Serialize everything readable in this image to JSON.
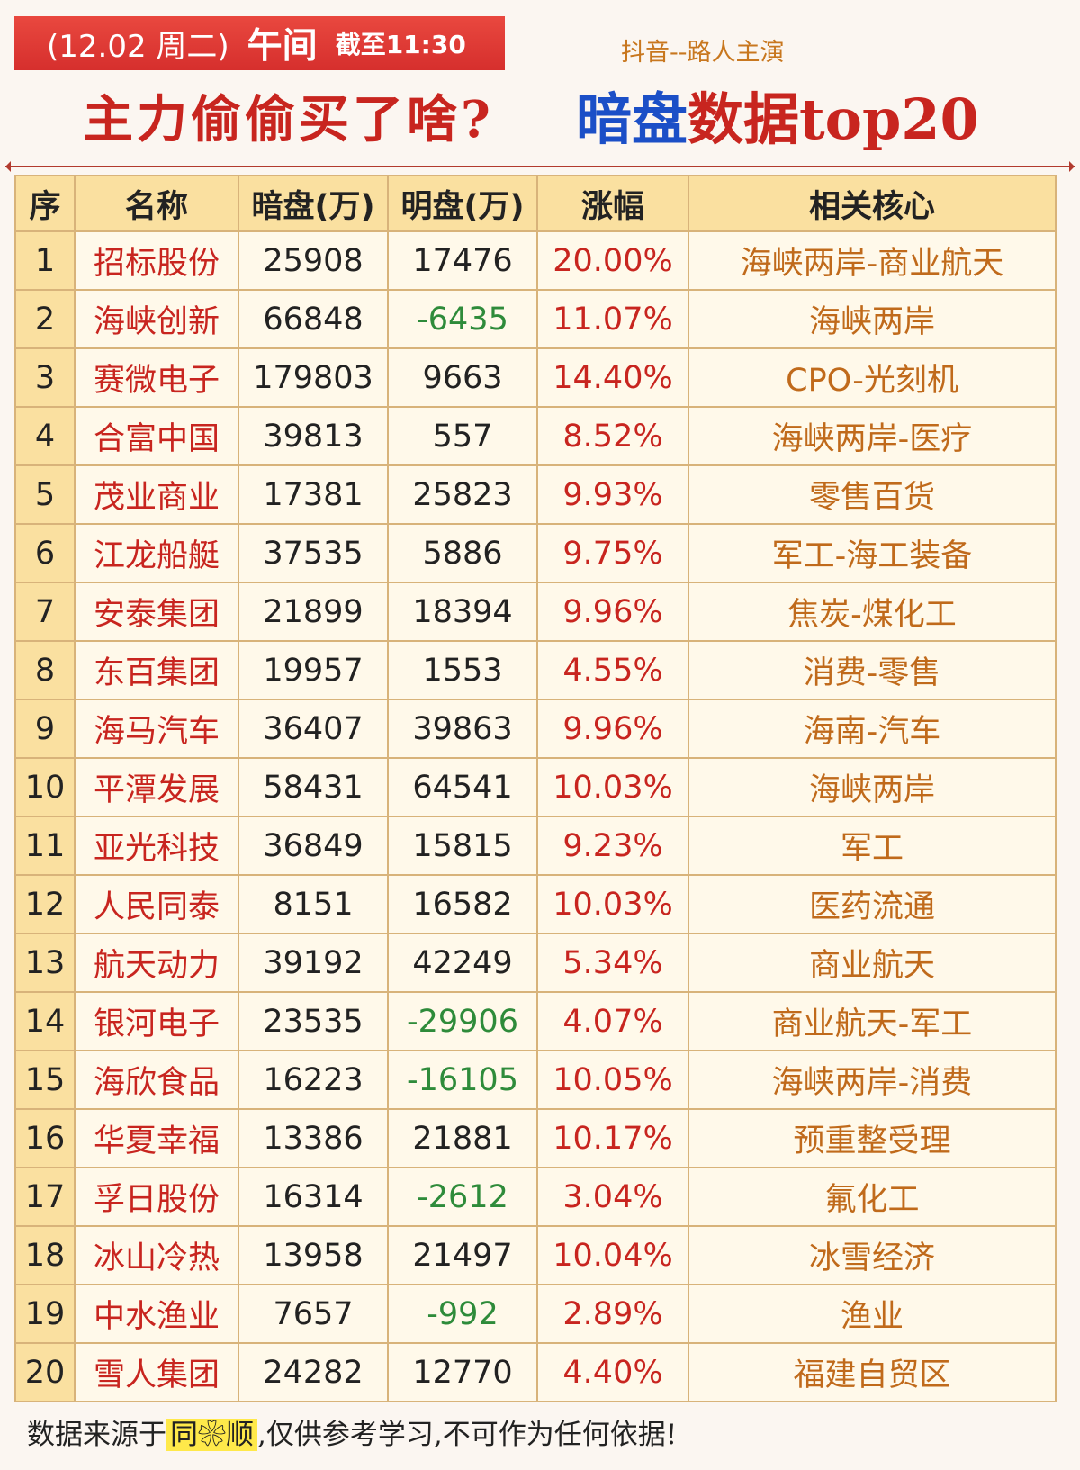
{
  "header": {
    "date": "(12.02 周二)",
    "session": "午间",
    "cutoff": "截至11:30",
    "source_tag": "抖音--路人主演",
    "title_left": "主力偷偷买了啥?",
    "title_right_part1": "暗盘",
    "title_right_part2": "数据top20"
  },
  "columns": [
    "序",
    "名称",
    "暗盘(万)",
    "明盘(万)",
    "涨幅",
    "相关核心"
  ],
  "rows": [
    {
      "seq": "1",
      "name": "招标股份",
      "dark": "25908",
      "lit": "17476",
      "change": "20.00%",
      "core": "海峡两岸-商业航天"
    },
    {
      "seq": "2",
      "name": "海峡创新",
      "dark": "66848",
      "lit": "-6435",
      "change": "11.07%",
      "core": "海峡两岸"
    },
    {
      "seq": "3",
      "name": "赛微电子",
      "dark": "179803",
      "lit": "9663",
      "change": "14.40%",
      "core": "CPO-光刻机"
    },
    {
      "seq": "4",
      "name": "合富中国",
      "dark": "39813",
      "lit": "557",
      "change": "8.52%",
      "core": "海峡两岸-医疗"
    },
    {
      "seq": "5",
      "name": "茂业商业",
      "dark": "17381",
      "lit": "25823",
      "change": "9.93%",
      "core": "零售百货"
    },
    {
      "seq": "6",
      "name": "江龙船艇",
      "dark": "37535",
      "lit": "5886",
      "change": "9.75%",
      "core": "军工-海工装备"
    },
    {
      "seq": "7",
      "name": "安泰集团",
      "dark": "21899",
      "lit": "18394",
      "change": "9.96%",
      "core": "焦炭-煤化工"
    },
    {
      "seq": "8",
      "name": "东百集团",
      "dark": "19957",
      "lit": "1553",
      "change": "4.55%",
      "core": "消费-零售"
    },
    {
      "seq": "9",
      "name": "海马汽车",
      "dark": "36407",
      "lit": "39863",
      "change": "9.96%",
      "core": "海南-汽车"
    },
    {
      "seq": "10",
      "name": "平潭发展",
      "dark": "58431",
      "lit": "64541",
      "change": "10.03%",
      "core": "海峡两岸"
    },
    {
      "seq": "11",
      "name": "亚光科技",
      "dark": "36849",
      "lit": "15815",
      "change": "9.23%",
      "core": "军工"
    },
    {
      "seq": "12",
      "name": "人民同泰",
      "dark": "8151",
      "lit": "16582",
      "change": "10.03%",
      "core": "医药流通"
    },
    {
      "seq": "13",
      "name": "航天动力",
      "dark": "39192",
      "lit": "42249",
      "change": "5.34%",
      "core": "商业航天"
    },
    {
      "seq": "14",
      "name": "银河电子",
      "dark": "23535",
      "lit": "-29906",
      "change": "4.07%",
      "core": "商业航天-军工"
    },
    {
      "seq": "15",
      "name": "海欣食品",
      "dark": "16223",
      "lit": "-16105",
      "change": "10.05%",
      "core": "海峡两岸-消费"
    },
    {
      "seq": "16",
      "name": "华夏幸福",
      "dark": "13386",
      "lit": "21881",
      "change": "10.17%",
      "core": "预重整受理"
    },
    {
      "seq": "17",
      "name": "孚日股份",
      "dark": "16314",
      "lit": "-2612",
      "change": "3.04%",
      "core": "氟化工"
    },
    {
      "seq": "18",
      "name": "冰山冷热",
      "dark": "13958",
      "lit": "21497",
      "change": "10.04%",
      "core": "冰雪经济"
    },
    {
      "seq": "19",
      "name": "中水渔业",
      "dark": "7657",
      "lit": "-992",
      "change": "2.89%",
      "core": "渔业"
    },
    {
      "seq": "20",
      "name": "雪人集团",
      "dark": "24282",
      "lit": "12770",
      "change": "4.40%",
      "core": "福建自贸区"
    }
  ],
  "footer": {
    "prefix": "数据来源于",
    "brand": "同❀顺",
    "suffix": ",仅供参考学习,不可作为任何依据!"
  },
  "colors": {
    "red": "#c8251f",
    "green": "#2e8b3a",
    "blue": "#1b4fc7",
    "orange": "#c06a1b",
    "header_bg": "#fae0a0"
  }
}
